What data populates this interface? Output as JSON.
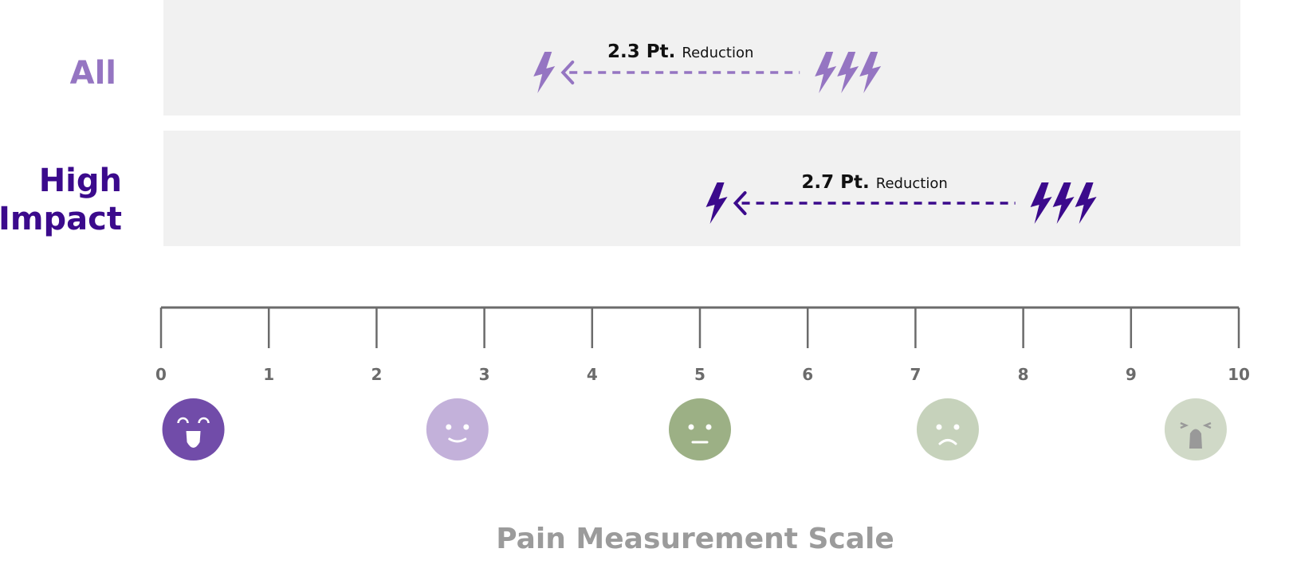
{
  "chart_data": {
    "type": "range-arrow",
    "xlabel": "Pain Measurement Scale",
    "xlim": [
      0,
      10
    ],
    "ticks": [
      "0",
      "1",
      "2",
      "3",
      "4",
      "5",
      "6",
      "7",
      "8",
      "9",
      "10"
    ],
    "grid": false,
    "series": [
      {
        "name": "All",
        "from": 6.0,
        "to": 3.7,
        "value_label": "2.3 Pt.",
        "suffix": "Reduction",
        "color": "#9575c2"
      },
      {
        "name": "High Impact",
        "name_lines": [
          "High",
          "Impact"
        ],
        "from": 8.0,
        "to": 5.3,
        "value_label": "2.7 Pt.",
        "suffix": "Reduction",
        "color": "#3b0a8c"
      }
    ],
    "faces": [
      {
        "icon": "laughing-face-icon",
        "at": 0.3,
        "color": "#714ca9"
      },
      {
        "icon": "smiling-face-icon",
        "at": 2.75,
        "color": "#c3b1da"
      },
      {
        "icon": "neutral-face-icon",
        "at": 5.0,
        "color": "#9cb085"
      },
      {
        "icon": "sad-face-icon",
        "at": 7.3,
        "color": "#c6d2bb"
      },
      {
        "icon": "crying-face-icon",
        "at": 9.6,
        "color": "#d0d9c7"
      }
    ],
    "band_color": "#f1f1f1",
    "axis_color": "#6b6b6b",
    "title_color": "#9b9b9b"
  }
}
